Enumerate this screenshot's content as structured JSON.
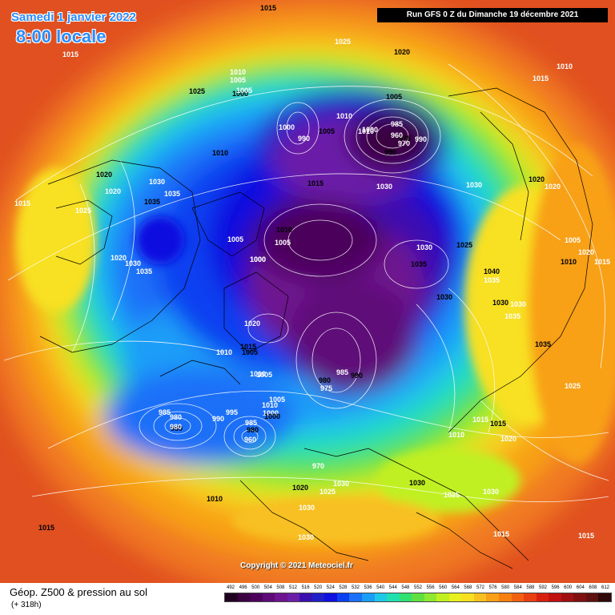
{
  "header": {
    "date": "Samedi 1 janvier 2022",
    "local_time": "8:00 locale",
    "run_info": "Run GFS 0 Z du Dimanche 19 décembre 2021"
  },
  "copyright": "Copyright © 2021 Meteociel.fr",
  "footer": {
    "title": "Géop. Z500 & pression au sol",
    "subtitle": "(+ 318h)"
  },
  "scale": {
    "labels": [
      "492",
      "496",
      "500",
      "504",
      "508",
      "512",
      "516",
      "520",
      "524",
      "528",
      "532",
      "536",
      "540",
      "544",
      "548",
      "552",
      "556",
      "560",
      "564",
      "568",
      "572",
      "576",
      "580",
      "584",
      "588",
      "592",
      "596",
      "600",
      "604",
      "608",
      "612"
    ],
    "colors": [
      "#200020",
      "#3a0040",
      "#4c005c",
      "#5e0a78",
      "#6e1490",
      "#6a1ea8",
      "#3a10b0",
      "#2020c8",
      "#1010e0",
      "#0a40f0",
      "#1a70f8",
      "#1a9ef8",
      "#20c8e8",
      "#20e0b0",
      "#30e070",
      "#60e040",
      "#90e830",
      "#c0f020",
      "#e8f020",
      "#f8e020",
      "#f8c020",
      "#f8a018",
      "#f88010",
      "#f06010",
      "#e84010",
      "#d82010",
      "#c01010",
      "#a01010",
      "#801010",
      "#601010",
      "#300808"
    ]
  },
  "map": {
    "colors": {
      "ocean_bg": "#f08028",
      "contour": "#ffffff",
      "coast": "#000000"
    },
    "isobar_labels": [
      "1015",
      "1015",
      "1025",
      "1020",
      "1010",
      "1015",
      "1025",
      "1010",
      "1005",
      "1000",
      "1005",
      "1010",
      "1005",
      "1000",
      "990",
      "1005",
      "1010",
      "985",
      "990",
      "1000",
      "970",
      "975",
      "960",
      "990",
      "1020",
      "1020",
      "1015",
      "1010",
      "1030",
      "1035",
      "1015",
      "1030",
      "1030",
      "1020",
      "1020",
      "1025",
      "1035",
      "1005",
      "1005",
      "1010",
      "1000",
      "1030",
      "1025",
      "1020",
      "1030",
      "1035",
      "1000",
      "1035",
      "1040",
      "1035",
      "1005",
      "1010",
      "1015",
      "1020",
      "1030",
      "1030",
      "1035",
      "1035",
      "1025",
      "1015",
      "1015",
      "1010",
      "1020",
      "1030",
      "1020",
      "1010",
      "1005",
      "1005",
      "1010",
      "980",
      "975",
      "985",
      "990",
      "1000",
      "1005",
      "1000",
      "995",
      "985",
      "980",
      "990",
      "985",
      "980",
      "960",
      "970",
      "1020",
      "1025",
      "1030",
      "1030",
      "1025",
      "1030",
      "1010",
      "1015",
      "1015",
      "1015",
      "1030",
      "1010",
      "1015",
      "1030"
    ],
    "low_markers": [
      "980",
      "980"
    ]
  }
}
